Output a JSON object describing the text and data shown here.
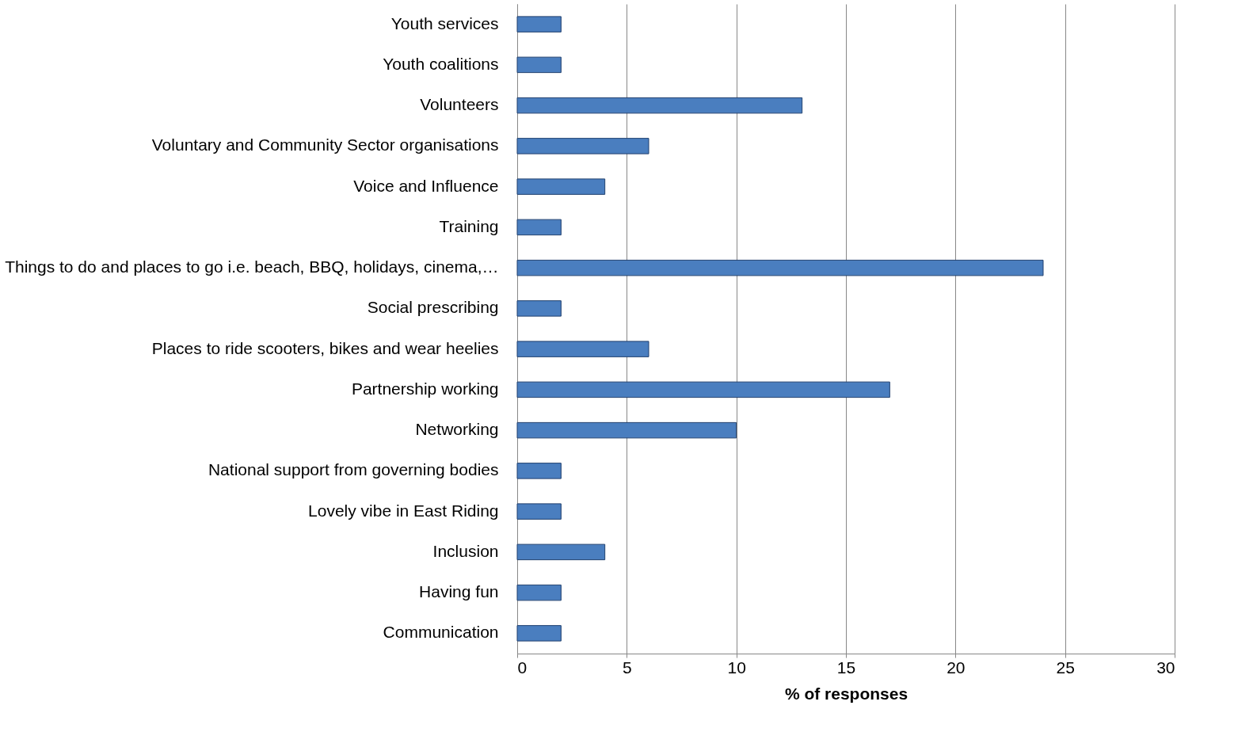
{
  "chart_data": {
    "type": "bar",
    "orientation": "horizontal",
    "xlabel": "% of responses",
    "categories": [
      "Youth services",
      "Youth coalitions",
      "Volunteers",
      "Voluntary and Community Sector organisations",
      "Voice and Influence",
      "Training",
      "Things to do and places to go i.e. beach, BBQ, holidays, cinema,…",
      "Social prescribing",
      "Places to ride scooters, bikes and wear heelies",
      "Partnership working",
      "Networking",
      "National support from governing bodies",
      "Lovely vibe in East Riding",
      "Inclusion",
      "Having fun",
      "Communication"
    ],
    "values": [
      2,
      2,
      13,
      6,
      4,
      2,
      24,
      2,
      6,
      17,
      10,
      2,
      2,
      4,
      2,
      2
    ],
    "color": "#4a7ebf",
    "xlim": [
      0,
      30
    ],
    "xticks": [
      0,
      5,
      10,
      15,
      20,
      25,
      30
    ],
    "grid": "x"
  }
}
